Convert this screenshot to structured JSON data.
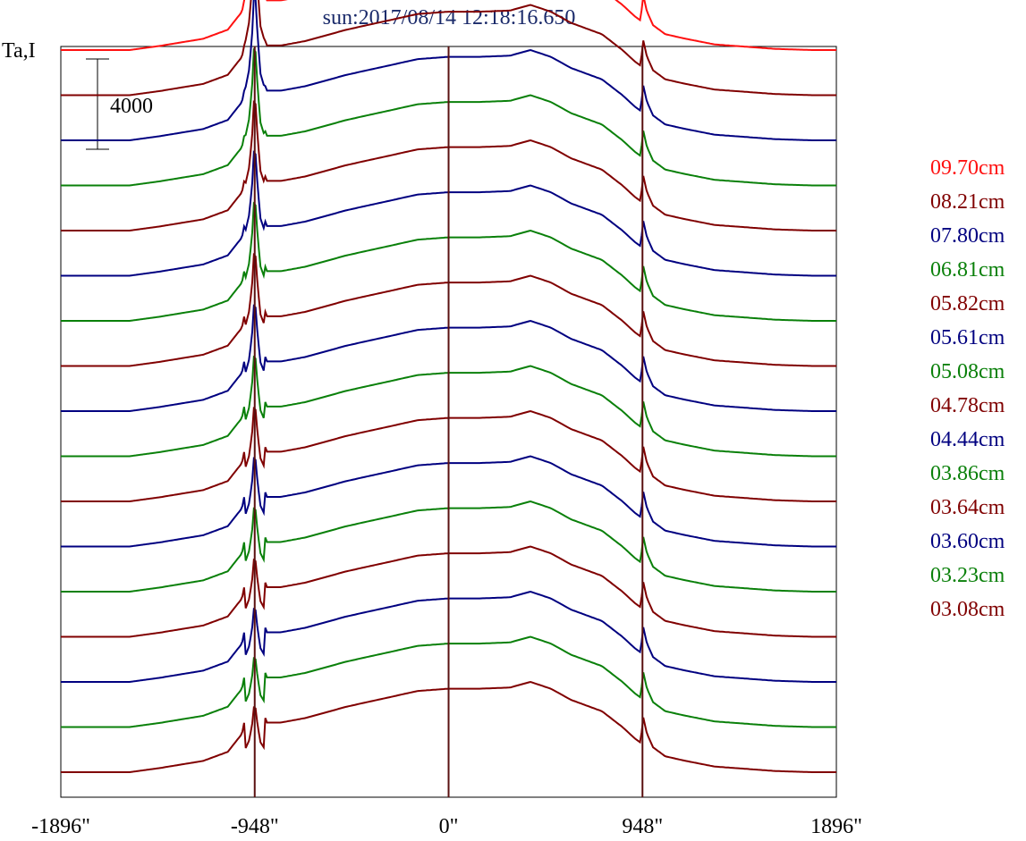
{
  "chart_data": {
    "type": "line",
    "title": "sun:2017/08/14 12:18:16.650",
    "ylabel": "Ta,I",
    "scale_bar_label": "4000",
    "scale_bar_value": 4000,
    "xlim": [
      -1896,
      1896
    ],
    "x_ticks": [
      {
        "value": -1896,
        "label": "-1896\""
      },
      {
        "value": -948,
        "label": "-948\""
      },
      {
        "value": 0,
        "label": "0\""
      },
      {
        "value": 948,
        "label": "948\""
      },
      {
        "value": 1896,
        "label": "1896\""
      }
    ],
    "vertical_lines": [
      -948,
      0,
      948
    ],
    "limb_color": "#5a1010",
    "trace_spacing": 2000,
    "profile_shape": {
      "x": [
        -1896,
        -1560,
        -1400,
        -1200,
        -1080,
        -1010,
        -975,
        -960,
        -952,
        -948,
        -944,
        -935,
        -920,
        -890,
        -820,
        -700,
        -500,
        -300,
        -150,
        0,
        150,
        300,
        400,
        500,
        600,
        750,
        850,
        910,
        940,
        950,
        970,
        1000,
        1060,
        1160,
        1300,
        1450,
        1600,
        1780,
        1896
      ],
      "y": [
        0,
        0,
        200,
        500,
        900,
        1700,
        3400,
        5200,
        6900,
        7400,
        6800,
        5200,
        3200,
        2200,
        2200,
        2400,
        2900,
        3300,
        3600,
        3700,
        3700,
        3750,
        4000,
        3700,
        3200,
        2700,
        2000,
        1500,
        1300,
        2500,
        1700,
        1100,
        700,
        500,
        250,
        150,
        50,
        0,
        0
      ]
    },
    "series": [
      {
        "name": "09.70cm",
        "color": "#ff1111",
        "peak": 1.0
      },
      {
        "name": "08.21cm",
        "color": "#800000",
        "peak": 0.93
      },
      {
        "name": "07.80cm",
        "color": "#000080",
        "peak": 0.88
      },
      {
        "name": "06.81cm",
        "color": "#0a800a",
        "peak": 0.8
      },
      {
        "name": "05.82cm",
        "color": "#800000",
        "peak": 0.73
      },
      {
        "name": "05.61cm",
        "color": "#000080",
        "peak": 0.68
      },
      {
        "name": "05.08cm",
        "color": "#0a800a",
        "peak": 0.62
      },
      {
        "name": "04.78cm",
        "color": "#800000",
        "peak": 0.56
      },
      {
        "name": "04.44cm",
        "color": "#000080",
        "peak": 0.5
      },
      {
        "name": "03.86cm",
        "color": "#0a800a",
        "peak": 0.44
      },
      {
        "name": "03.64cm",
        "color": "#800000",
        "peak": 0.38
      },
      {
        "name": "03.60cm",
        "color": "#000080",
        "peak": 0.33
      },
      {
        "name": "03.23cm",
        "color": "#0a800a",
        "peak": 0.28
      },
      {
        "name": "03.08cm",
        "color": "#800000",
        "peak": 0.22
      },
      {
        "name": "",
        "color": "#000080",
        "peak": 0.18
      },
      {
        "name": "",
        "color": "#0a800a",
        "peak": 0.14
      },
      {
        "name": "",
        "color": "#800000",
        "peak": 0.1
      }
    ]
  }
}
